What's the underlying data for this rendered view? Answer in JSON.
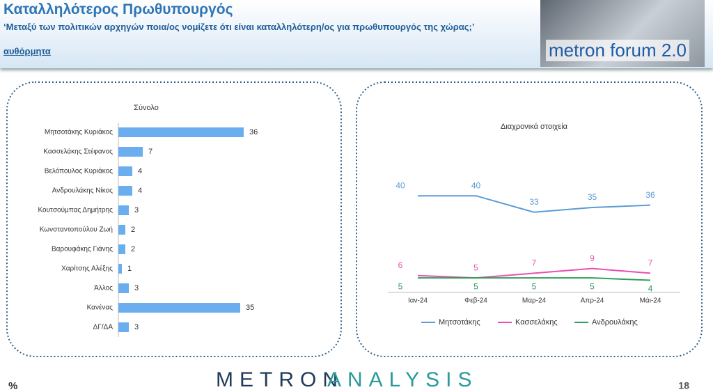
{
  "header": {
    "title": "Καταλληλότερος Πρωθυπουργός",
    "question": "‘Μεταξύ των πολιτικών αρχηγών ποια/ος νομίζετε ότι είναι καταλληλότερη/ος για πρωθυπουργός της χώρας;’",
    "note": "αυθόρμητα",
    "logo": "metron forum 2.0"
  },
  "chart_data": [
    {
      "type": "hbar",
      "title": "Σύνολο",
      "categories": [
        "Μητσοτάκης Κυριάκος",
        "Κασσελάκης Στέφανος",
        "Βελόπουλος Κυριάκος",
        "Ανδρουλάκης Νίκος",
        "Κουτσούμπας Δημήτρης",
        "Κωνσταντοπούλου Ζωή",
        "Βαρουφάκης Γιάνης",
        "Χαρίτσης Αλέξης",
        "Άλλος",
        "Κανένας",
        "ΔΓ/ΔΑ"
      ],
      "values": [
        36,
        7,
        4,
        4,
        3,
        2,
        2,
        1,
        3,
        35,
        3
      ],
      "color": "#6aaef0"
    },
    {
      "type": "line",
      "title": "Διαχρονικά στοιχεία",
      "categories": [
        "Ιαν-24",
        "Φεβ-24",
        "Μαρ-24",
        "Απρ-24",
        "Μάι-24"
      ],
      "series": [
        {
          "name": "Μητσοτάκης",
          "color": "#5b9bd5",
          "values": [
            40,
            40,
            33,
            35,
            36
          ]
        },
        {
          "name": "Κασσελάκης",
          "color": "#e94fb0",
          "values": [
            6,
            5,
            7,
            9,
            7
          ]
        },
        {
          "name": "Ανδρουλάκης",
          "color": "#2f9e5a",
          "values": [
            5,
            5,
            5,
            5,
            4
          ]
        }
      ],
      "legend": "bottom"
    }
  ],
  "footer": {
    "unit": "%",
    "brand_a": "METRON",
    "brand_b": "ANALYSIS",
    "page": "18"
  }
}
